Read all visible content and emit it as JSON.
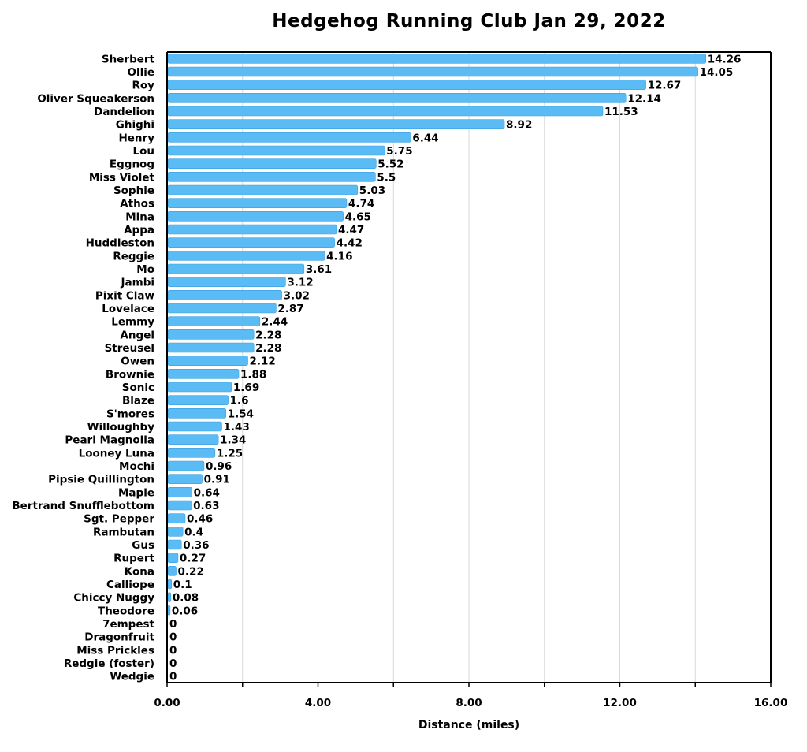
{
  "chart_data": {
    "type": "bar",
    "orientation": "horizontal",
    "title": "Hedgehog Running Club Jan 29, 2022",
    "xlabel": "Distance (miles)",
    "ylabel": "",
    "xlim": [
      0,
      16
    ],
    "xticks": [
      "0.00",
      "4.00",
      "8.00",
      "12.00",
      "16.00"
    ],
    "grid": "vertical",
    "bar_color": "#5bbcf5",
    "bar_edge_color": "#3a9fe0",
    "categories": [
      "Sherbert",
      "Ollie",
      "Roy",
      "Oliver Squeakerson",
      "Dandelion",
      "Ghighi",
      "Henry",
      "Lou",
      "Eggnog",
      "Miss Violet",
      "Sophie",
      "Athos",
      "Mina",
      "Appa",
      "Huddleston",
      "Reggie",
      "Mo",
      "Jambi",
      "Pixit Claw",
      "Lovelace",
      "Lemmy",
      "Angel",
      "Streusel",
      "Owen",
      "Brownie",
      "Sonic",
      "Blaze",
      "S'mores",
      "Willoughby",
      "Pearl Magnolia",
      "Looney Luna",
      "Mochi",
      "Pipsie Quillington",
      "Maple",
      "Bertrand Snufflebottom",
      "Sgt. Pepper",
      "Rambutan",
      "Gus",
      "Rupert",
      "Kona",
      "Calliope",
      "Chiccy Nuggy",
      "Theodore",
      "7empest",
      "Dragonfruit",
      "Miss Prickles",
      "Redgie (foster)",
      "Wedgie"
    ],
    "values": [
      14.26,
      14.05,
      12.67,
      12.14,
      11.53,
      8.92,
      6.44,
      5.75,
      5.52,
      5.5,
      5.03,
      4.74,
      4.65,
      4.47,
      4.42,
      4.16,
      3.61,
      3.12,
      3.02,
      2.87,
      2.44,
      2.28,
      2.28,
      2.12,
      1.88,
      1.69,
      1.6,
      1.54,
      1.43,
      1.34,
      1.25,
      0.96,
      0.91,
      0.64,
      0.63,
      0.46,
      0.4,
      0.36,
      0.27,
      0.22,
      0.1,
      0.08,
      0.06,
      0,
      0,
      0,
      0,
      0
    ],
    "data_labels": [
      "14.26",
      "14.05",
      "12.67",
      "12.14",
      "11.53",
      "8.92",
      "6.44",
      "5.75",
      "5.52",
      "5.5",
      "5.03",
      "4.74",
      "4.65",
      "4.47",
      "4.42",
      "4.16",
      "3.61",
      "3.12",
      "3.02",
      "2.87",
      "2.44",
      "2.28",
      "2.28",
      "2.12",
      "1.88",
      "1.69",
      "1.6",
      "1.54",
      "1.43",
      "1.34",
      "1.25",
      "0.96",
      "0.91",
      "0.64",
      "0.63",
      "0.46",
      "0.4",
      "0.36",
      "0.27",
      "0.22",
      "0.1",
      "0.08",
      "0.06",
      "0",
      "0",
      "0",
      "0",
      "0"
    ]
  }
}
